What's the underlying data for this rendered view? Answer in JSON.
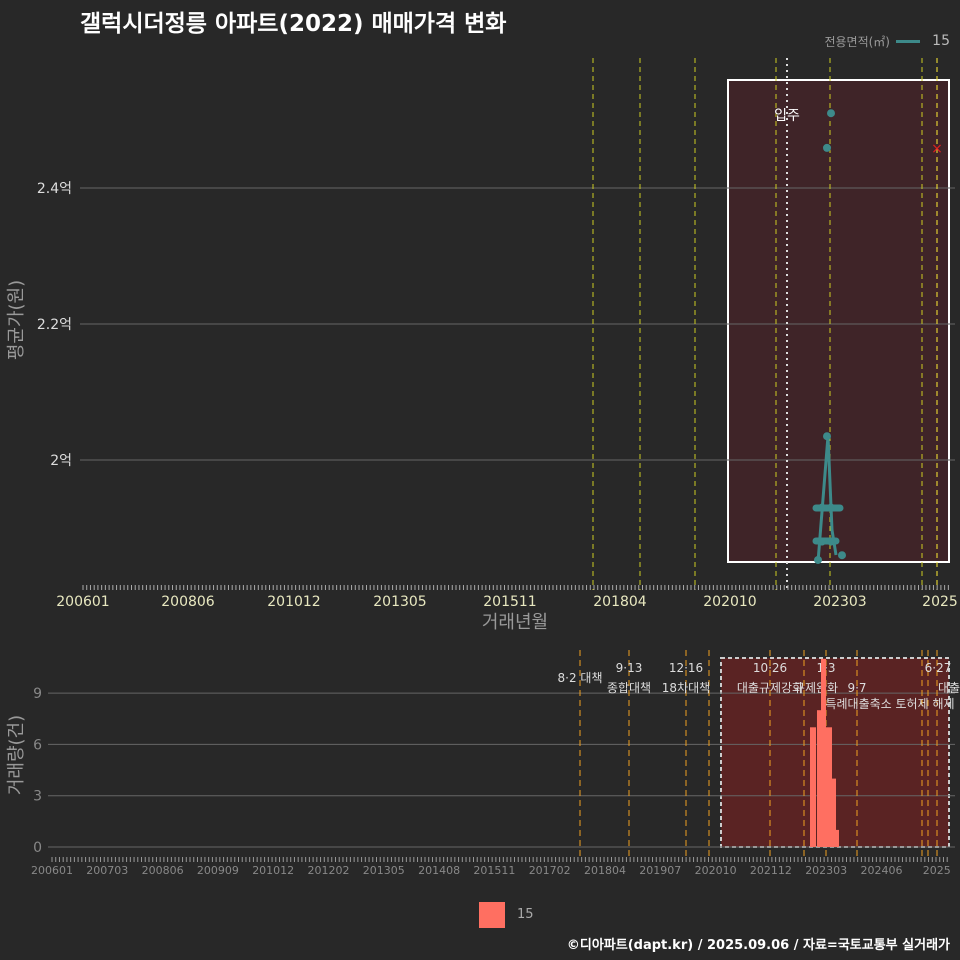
{
  "title": "갤럭시더정릉 아파트(2022) 매매가격 변화",
  "legend_top": {
    "title": "전용면적(㎡)",
    "item": "15"
  },
  "legend_bottom": {
    "item": "15"
  },
  "footer": "©디아파트(dapt.kr) / 2025.09.06 / 자료=국토교통부 실거래가",
  "colors": {
    "line": "#3d8a8a",
    "bar": "#ff6f61",
    "shade": "#3f2428",
    "shade2": "#5a2323"
  },
  "chart_data": [
    {
      "type": "line",
      "title": "갤럭시더정릉 아파트(2022) 매매가격 변화",
      "xlabel": "거래년월",
      "ylabel": "평균가(원)",
      "x_ticks": [
        "200601",
        "200806",
        "201012",
        "201305",
        "201511",
        "201804",
        "202010",
        "202303",
        "2025"
      ],
      "y_ticks": [
        "2억",
        "2.2억",
        "2.4억"
      ],
      "y_tick_values": [
        2.0,
        2.2,
        2.4
      ],
      "ylim": [
        1.82,
        2.58
      ],
      "annotation": "입주",
      "series": [
        {
          "name": "15",
          "points": [
            [
              "202211",
              1.853
            ],
            [
              "202212",
              1.88
            ],
            [
              "202212",
              1.93
            ],
            [
              "202301",
              2.035
            ],
            [
              "202302",
              1.93
            ],
            [
              "202302",
              1.88
            ],
            [
              "202303",
              1.86
            ],
            [
              "202301",
              2.459
            ],
            [
              "202302",
              2.51
            ]
          ]
        }
      ],
      "marker_x": {
        "x": "202501",
        "y": 2.459
      }
    },
    {
      "type": "bar",
      "xlabel": "",
      "ylabel": "거래량(건)",
      "y_ticks": [
        "0",
        "3",
        "6",
        "9"
      ],
      "ylim": [
        0,
        11
      ],
      "x_ticks": [
        "200601",
        "200703",
        "200806",
        "200909",
        "201012",
        "201202",
        "201305",
        "201408",
        "201511",
        "201702",
        "201804",
        "201907",
        "202010",
        "202112",
        "202303",
        "202406",
        "2025"
      ],
      "categories": [
        "202211",
        "202212",
        "202301",
        "202302",
        "202303",
        "202304"
      ],
      "values": [
        7,
        8,
        11,
        7,
        4,
        1
      ],
      "events": [
        {
          "date": "8·2",
          "label": "대책"
        },
        {
          "date": "9·13",
          "label": "종합대책"
        },
        {
          "date": "12·16",
          "label": "18차대책"
        },
        {
          "date": "10·26",
          "label": "대출규제강화"
        },
        {
          "date": "1·3",
          "label": "규제완화"
        },
        {
          "date": "9·7",
          "label": "특례대출축소 토허제 해제"
        },
        {
          "date": "6·27",
          "label": "대출규제"
        }
      ]
    }
  ]
}
